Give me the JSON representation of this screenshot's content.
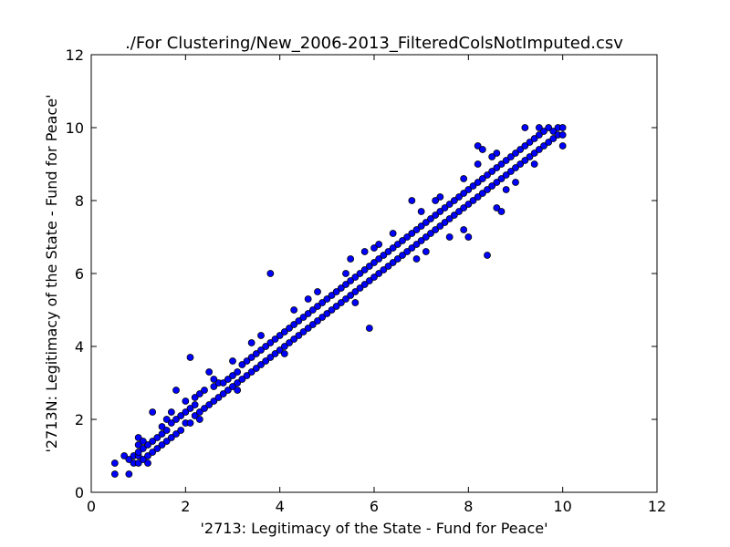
{
  "chart_data": {
    "type": "scatter",
    "title": "./For Clustering/New_2006-2013_FilteredColsNotImputed.csv",
    "xlabel": "'2713: Legitimacy of the State - Fund for Peace'",
    "ylabel": "'2713N: Legitimacy of the State - Fund for Peace'",
    "xlim": [
      0,
      12
    ],
    "ylim": [
      0,
      12
    ],
    "xticks": [
      0,
      2,
      4,
      6,
      8,
      10,
      12
    ],
    "yticks": [
      0,
      2,
      4,
      6,
      8,
      10,
      12
    ],
    "tick_labels": {
      "x": [
        "0",
        "2",
        "4",
        "6",
        "8",
        "10",
        "12"
      ],
      "y": [
        "0",
        "2",
        "4",
        "6",
        "8",
        "10",
        "12"
      ]
    },
    "grid": false,
    "legend": "none",
    "marker_color": "#0000ff",
    "marker_edge_color": "#000000",
    "points": [
      [
        0.5,
        0.5
      ],
      [
        0.5,
        0.8
      ],
      [
        0.7,
        1.0
      ],
      [
        0.8,
        0.5
      ],
      [
        0.8,
        0.9
      ],
      [
        0.9,
        0.8
      ],
      [
        0.9,
        1.0
      ],
      [
        1.0,
        0.8
      ],
      [
        1.0,
        1.0
      ],
      [
        1.0,
        1.1
      ],
      [
        1.0,
        1.3
      ],
      [
        1.0,
        1.5
      ],
      [
        1.1,
        0.9
      ],
      [
        1.1,
        1.2
      ],
      [
        1.2,
        1.0
      ],
      [
        1.2,
        1.3
      ],
      [
        1.2,
        0.8
      ],
      [
        1.3,
        1.1
      ],
      [
        1.3,
        1.4
      ],
      [
        1.3,
        2.2
      ],
      [
        1.4,
        1.2
      ],
      [
        1.4,
        1.5
      ],
      [
        1.5,
        1.3
      ],
      [
        1.5,
        1.6
      ],
      [
        1.5,
        1.8
      ],
      [
        1.6,
        1.4
      ],
      [
        1.6,
        1.7
      ],
      [
        1.7,
        1.5
      ],
      [
        1.7,
        1.9
      ],
      [
        1.7,
        2.2
      ],
      [
        1.8,
        1.6
      ],
      [
        1.8,
        2.0
      ],
      [
        1.8,
        2.8
      ],
      [
        1.9,
        1.7
      ],
      [
        1.9,
        2.1
      ],
      [
        2.0,
        1.9
      ],
      [
        2.0,
        2.2
      ],
      [
        2.0,
        2.5
      ],
      [
        2.1,
        1.9
      ],
      [
        2.1,
        2.3
      ],
      [
        2.1,
        3.7
      ],
      [
        2.2,
        2.1
      ],
      [
        2.2,
        2.4
      ],
      [
        2.2,
        2.6
      ],
      [
        2.3,
        2.2
      ],
      [
        2.3,
        2.7
      ],
      [
        2.4,
        2.3
      ],
      [
        2.4,
        2.8
      ],
      [
        2.5,
        2.4
      ],
      [
        2.5,
        3.3
      ],
      [
        2.6,
        2.5
      ],
      [
        2.6,
        2.9
      ],
      [
        2.7,
        2.6
      ],
      [
        2.7,
        3.0
      ],
      [
        2.8,
        2.7
      ],
      [
        2.8,
        3.0
      ],
      [
        2.9,
        2.8
      ],
      [
        2.9,
        3.1
      ],
      [
        3.0,
        2.9
      ],
      [
        3.0,
        3.2
      ],
      [
        3.0,
        3.6
      ],
      [
        3.1,
        3.0
      ],
      [
        3.1,
        3.3
      ],
      [
        3.2,
        3.1
      ],
      [
        3.2,
        3.5
      ],
      [
        3.3,
        3.2
      ],
      [
        3.3,
        3.6
      ],
      [
        3.4,
        3.3
      ],
      [
        3.4,
        3.7
      ],
      [
        3.4,
        4.1
      ],
      [
        3.5,
        3.4
      ],
      [
        3.5,
        3.8
      ],
      [
        3.6,
        3.5
      ],
      [
        3.6,
        3.9
      ],
      [
        3.7,
        3.6
      ],
      [
        3.7,
        4.0
      ],
      [
        3.8,
        3.7
      ],
      [
        3.8,
        4.1
      ],
      [
        3.8,
        6.0
      ],
      [
        3.9,
        3.8
      ],
      [
        3.9,
        4.2
      ],
      [
        4.0,
        3.9
      ],
      [
        4.0,
        4.3
      ],
      [
        4.1,
        4.0
      ],
      [
        4.1,
        4.4
      ],
      [
        4.2,
        4.1
      ],
      [
        4.2,
        4.5
      ],
      [
        4.3,
        4.2
      ],
      [
        4.3,
        4.6
      ],
      [
        4.3,
        5.0
      ],
      [
        4.4,
        4.3
      ],
      [
        4.4,
        4.7
      ],
      [
        4.5,
        4.4
      ],
      [
        4.5,
        4.8
      ],
      [
        4.6,
        4.5
      ],
      [
        4.6,
        4.9
      ],
      [
        4.7,
        4.6
      ],
      [
        4.7,
        5.0
      ],
      [
        4.8,
        4.7
      ],
      [
        4.8,
        5.1
      ],
      [
        4.8,
        5.5
      ],
      [
        4.9,
        4.8
      ],
      [
        4.9,
        5.2
      ],
      [
        5.0,
        4.9
      ],
      [
        5.0,
        5.3
      ],
      [
        5.1,
        5.0
      ],
      [
        5.1,
        5.4
      ],
      [
        5.2,
        5.1
      ],
      [
        5.2,
        5.5
      ],
      [
        5.3,
        5.2
      ],
      [
        5.3,
        5.6
      ],
      [
        5.4,
        5.3
      ],
      [
        5.4,
        5.7
      ],
      [
        5.4,
        6.0
      ],
      [
        5.5,
        5.4
      ],
      [
        5.5,
        5.8
      ],
      [
        5.5,
        6.4
      ],
      [
        5.6,
        5.5
      ],
      [
        5.6,
        5.9
      ],
      [
        5.7,
        5.6
      ],
      [
        5.7,
        6.0
      ],
      [
        5.8,
        5.7
      ],
      [
        5.8,
        6.1
      ],
      [
        5.9,
        5.8
      ],
      [
        5.9,
        6.2
      ],
      [
        5.9,
        4.5
      ],
      [
        6.0,
        5.9
      ],
      [
        6.0,
        6.3
      ],
      [
        6.0,
        6.7
      ],
      [
        6.1,
        6.0
      ],
      [
        6.1,
        6.4
      ],
      [
        6.2,
        6.1
      ],
      [
        6.2,
        6.5
      ],
      [
        6.3,
        6.2
      ],
      [
        6.3,
        6.6
      ],
      [
        6.4,
        6.3
      ],
      [
        6.4,
        6.7
      ],
      [
        6.4,
        7.1
      ],
      [
        6.5,
        6.4
      ],
      [
        6.5,
        6.8
      ],
      [
        6.6,
        6.5
      ],
      [
        6.6,
        6.9
      ],
      [
        6.7,
        6.6
      ],
      [
        6.7,
        7.0
      ],
      [
        6.8,
        6.7
      ],
      [
        6.8,
        7.1
      ],
      [
        6.8,
        8.0
      ],
      [
        6.9,
        6.8
      ],
      [
        6.9,
        7.2
      ],
      [
        7.0,
        6.9
      ],
      [
        7.0,
        7.3
      ],
      [
        7.0,
        7.7
      ],
      [
        7.1,
        7.0
      ],
      [
        7.1,
        7.4
      ],
      [
        7.2,
        7.1
      ],
      [
        7.2,
        7.5
      ],
      [
        7.3,
        7.2
      ],
      [
        7.3,
        7.6
      ],
      [
        7.4,
        7.3
      ],
      [
        7.4,
        7.7
      ],
      [
        7.4,
        8.1
      ],
      [
        7.5,
        7.4
      ],
      [
        7.5,
        7.8
      ],
      [
        7.6,
        7.5
      ],
      [
        7.6,
        7.9
      ],
      [
        7.6,
        7.0
      ],
      [
        7.7,
        7.6
      ],
      [
        7.7,
        8.0
      ],
      [
        7.8,
        7.7
      ],
      [
        7.8,
        8.1
      ],
      [
        7.9,
        7.8
      ],
      [
        7.9,
        8.2
      ],
      [
        7.9,
        8.6
      ],
      [
        8.0,
        7.9
      ],
      [
        8.0,
        8.3
      ],
      [
        8.0,
        7.0
      ],
      [
        8.1,
        8.0
      ],
      [
        8.1,
        8.4
      ],
      [
        8.2,
        8.1
      ],
      [
        8.2,
        8.5
      ],
      [
        8.2,
        9.0
      ],
      [
        8.3,
        8.2
      ],
      [
        8.3,
        8.6
      ],
      [
        8.4,
        8.3
      ],
      [
        8.4,
        8.7
      ],
      [
        8.4,
        6.5
      ],
      [
        8.5,
        8.4
      ],
      [
        8.5,
        8.8
      ],
      [
        8.5,
        9.2
      ],
      [
        8.6,
        8.5
      ],
      [
        8.6,
        8.9
      ],
      [
        8.6,
        7.8
      ],
      [
        8.7,
        8.6
      ],
      [
        8.7,
        9.0
      ],
      [
        8.7,
        7.7
      ],
      [
        8.8,
        8.7
      ],
      [
        8.8,
        9.1
      ],
      [
        8.9,
        8.8
      ],
      [
        8.9,
        9.2
      ],
      [
        9.0,
        8.9
      ],
      [
        9.0,
        9.3
      ],
      [
        9.0,
        8.5
      ],
      [
        9.1,
        9.0
      ],
      [
        9.1,
        9.4
      ],
      [
        9.2,
        9.1
      ],
      [
        9.2,
        9.5
      ],
      [
        9.2,
        10.0
      ],
      [
        9.3,
        9.2
      ],
      [
        9.3,
        9.6
      ],
      [
        9.4,
        9.3
      ],
      [
        9.4,
        9.7
      ],
      [
        9.5,
        9.4
      ],
      [
        9.5,
        9.8
      ],
      [
        9.5,
        10.0
      ],
      [
        9.6,
        9.5
      ],
      [
        9.6,
        9.9
      ],
      [
        9.7,
        9.6
      ],
      [
        9.7,
        10.0
      ],
      [
        9.8,
        9.7
      ],
      [
        9.8,
        9.9
      ],
      [
        9.9,
        9.8
      ],
      [
        9.9,
        10.0
      ],
      [
        10.0,
        9.5
      ],
      [
        10.0,
        9.8
      ],
      [
        10.0,
        10.0
      ],
      [
        8.2,
        9.5
      ],
      [
        8.3,
        9.4
      ],
      [
        8.6,
        9.3
      ],
      [
        7.3,
        8.0
      ],
      [
        6.1,
        6.8
      ],
      [
        5.8,
        6.6
      ],
      [
        4.6,
        5.3
      ],
      [
        3.6,
        4.3
      ],
      [
        2.6,
        3.1
      ],
      [
        1.6,
        2.0
      ],
      [
        1.1,
        1.4
      ],
      [
        7.9,
        7.2
      ],
      [
        6.9,
        6.4
      ],
      [
        9.4,
        9.0
      ],
      [
        8.8,
        8.3
      ],
      [
        7.1,
        6.6
      ],
      [
        5.6,
        5.2
      ],
      [
        4.1,
        3.8
      ],
      [
        3.1,
        2.8
      ],
      [
        2.3,
        2.0
      ]
    ]
  }
}
